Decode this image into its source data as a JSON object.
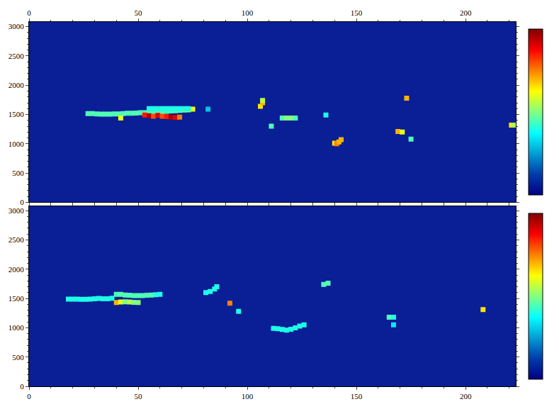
{
  "chart_data": [
    {
      "type": "heatmap",
      "grid": false,
      "xlim": [
        0,
        223
      ],
      "xticks": [
        0,
        50,
        100,
        150,
        200
      ],
      "ylim": [
        0,
        3080
      ],
      "yticks": [
        0,
        500,
        1000,
        1500,
        2000,
        2500,
        3000
      ],
      "zlim": [
        0,
        1
      ],
      "cells": {
        "x": [
          27,
          29,
          31,
          33,
          35,
          37,
          39,
          41,
          43,
          45,
          47,
          49,
          51,
          53,
          55,
          57,
          59,
          61,
          63,
          65,
          67,
          69,
          71,
          73,
          75,
          55,
          57,
          59,
          61,
          63,
          65,
          67,
          69,
          71,
          73,
          53,
          55,
          57,
          59,
          61,
          63,
          65,
          67,
          69,
          42,
          82,
          106,
          107,
          107,
          111,
          116,
          118,
          120,
          122,
          136,
          140,
          141,
          142,
          143,
          169,
          171,
          173,
          175,
          221,
          222
        ],
        "y": [
          1515,
          1515,
          1510,
          1505,
          1505,
          1505,
          1510,
          1510,
          1515,
          1520,
          1520,
          1525,
          1530,
          1530,
          1535,
          1540,
          1545,
          1550,
          1555,
          1560,
          1565,
          1570,
          1575,
          1580,
          1590,
          1600,
          1600,
          1600,
          1600,
          1600,
          1600,
          1600,
          1600,
          1600,
          1600,
          1490,
          1480,
          1470,
          1485,
          1470,
          1465,
          1455,
          1450,
          1455,
          1440,
          1590,
          1640,
          1700,
          1740,
          1300,
          1440,
          1440,
          1440,
          1440,
          1490,
          1010,
          1000,
          1030,
          1070,
          1210,
          1200,
          1780,
          1080,
          1320,
          1320
        ],
        "z": [
          0.45,
          0.45,
          0.45,
          0.45,
          0.45,
          0.45,
          0.45,
          0.45,
          0.45,
          0.45,
          0.45,
          0.45,
          0.45,
          0.45,
          0.45,
          0.45,
          0.45,
          0.45,
          0.45,
          0.45,
          0.45,
          0.45,
          0.5,
          0.5,
          0.6,
          0.4,
          0.4,
          0.4,
          0.4,
          0.4,
          0.4,
          0.4,
          0.4,
          0.4,
          0.4,
          0.85,
          0.95,
          0.8,
          0.9,
          0.8,
          0.85,
          0.95,
          0.9,
          0.75,
          0.6,
          0.3,
          0.65,
          0.7,
          0.55,
          0.45,
          0.45,
          0.5,
          0.5,
          0.45,
          0.4,
          0.65,
          0.75,
          0.7,
          0.7,
          0.7,
          0.6,
          0.7,
          0.45,
          0.65,
          0.55
        ]
      }
    },
    {
      "type": "heatmap",
      "grid": false,
      "xlim": [
        0,
        223
      ],
      "xticks": [
        0,
        50,
        100,
        150,
        200
      ],
      "ylim": [
        0,
        3080
      ],
      "yticks": [
        0,
        500,
        1000,
        1500,
        2000,
        2500,
        3000
      ],
      "zlim": [
        0,
        1
      ],
      "cells": {
        "x": [
          18,
          20,
          22,
          24,
          26,
          28,
          30,
          32,
          34,
          36,
          38,
          40,
          42,
          44,
          46,
          48,
          50,
          52,
          54,
          56,
          58,
          60,
          40,
          42,
          44,
          46,
          48,
          50,
          81,
          83,
          85,
          86,
          92,
          96,
          112,
          114,
          116,
          118,
          120,
          122,
          124,
          126,
          135,
          137,
          165,
          167,
          167,
          208
        ],
        "y": [
          1490,
          1490,
          1490,
          1485,
          1485,
          1490,
          1495,
          1500,
          1495,
          1495,
          1505,
          1570,
          1570,
          1560,
          1555,
          1550,
          1550,
          1550,
          1555,
          1560,
          1565,
          1570,
          1430,
          1440,
          1445,
          1440,
          1435,
          1430,
          1600,
          1620,
          1660,
          1700,
          1420,
          1280,
          990,
          985,
          970,
          960,
          975,
          1000,
          1030,
          1050,
          1740,
          1760,
          1180,
          1180,
          1050,
          1310
        ],
        "z": [
          0.4,
          0.4,
          0.4,
          0.4,
          0.4,
          0.4,
          0.4,
          0.4,
          0.4,
          0.4,
          0.4,
          0.45,
          0.45,
          0.45,
          0.45,
          0.45,
          0.45,
          0.45,
          0.45,
          0.45,
          0.4,
          0.4,
          0.7,
          0.6,
          0.5,
          0.55,
          0.5,
          0.5,
          0.4,
          0.4,
          0.4,
          0.4,
          0.75,
          0.4,
          0.4,
          0.4,
          0.4,
          0.4,
          0.4,
          0.4,
          0.4,
          0.4,
          0.45,
          0.45,
          0.45,
          0.4,
          0.35,
          0.65
        ]
      }
    }
  ]
}
